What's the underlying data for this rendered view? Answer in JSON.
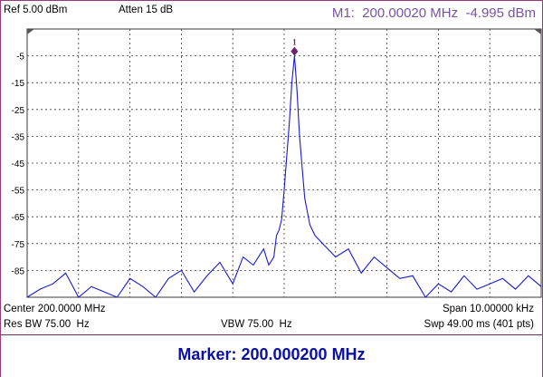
{
  "header": {
    "ref_level": "Ref 5.00 dBm",
    "attenuation": "Atten 15 dB",
    "marker_readout": "M1:  200.00020 MHz  -4.995 dBm"
  },
  "footer": {
    "center": "Center 200.0000 MHz",
    "span": "Span 10.00000 kHz",
    "res_bw": "Res BW 75.00  Hz",
    "vbw": "VBW 75.00  Hz",
    "sweep": "Swp 49.00 ms (401 pts)"
  },
  "marker_bar": {
    "label": "Marker:",
    "value": "200.000200 MHz"
  },
  "marker": {
    "label": "1",
    "x": 200.0002,
    "y": -4.995
  },
  "colors": {
    "trace": "#1a1ad0",
    "marker": "#6b2270",
    "grid": "#3a3a3a",
    "accent": "#7a52a8"
  },
  "chart_data": {
    "type": "line",
    "xlim": [
      199.995,
      200.005
    ],
    "ylim": [
      -95,
      5
    ],
    "ytick_labels": [
      "-5",
      "-15",
      "-25",
      "-35",
      "-45",
      "-55",
      "-65",
      "-75",
      "-85"
    ],
    "grid": true,
    "series": [
      {
        "x": [
          199.995,
          199.99525,
          199.9955,
          199.99575,
          199.996,
          199.99625,
          199.9965,
          199.99675,
          199.997,
          199.99725,
          199.9975,
          199.99775,
          199.998,
          199.99825,
          199.9985,
          199.99875,
          199.999,
          199.9992,
          199.9994,
          199.9996,
          199.9997,
          199.9998,
          199.99985,
          199.9999,
          199.99995,
          200.0,
          200.0001,
          200.00015,
          200.0002,
          200.00025,
          200.0003,
          200.0004,
          200.0005,
          200.0006,
          200.0008,
          200.001,
          200.00125,
          200.0015,
          200.00175,
          200.002,
          200.00225,
          200.0025,
          200.00275,
          200.003,
          200.00325,
          200.0035,
          200.00375,
          200.004,
          200.00425,
          200.0045,
          200.00475,
          200.005
        ],
        "y": [
          -95,
          -92,
          -90,
          -86,
          -95,
          -91,
          -93,
          -95,
          -88,
          -91,
          -95,
          -88,
          -85,
          -93,
          -87,
          -82,
          -90,
          -80,
          -83,
          -77,
          -83,
          -80,
          -72,
          -70,
          -66,
          -55,
          -30,
          -15,
          -5,
          -18,
          -35,
          -58,
          -68,
          -72,
          -76,
          -80,
          -77,
          -86,
          -80,
          -84,
          -88,
          -87,
          -95,
          -90,
          -93,
          -87,
          -92,
          -90,
          -88,
          -92,
          -87,
          -91
        ]
      }
    ]
  }
}
